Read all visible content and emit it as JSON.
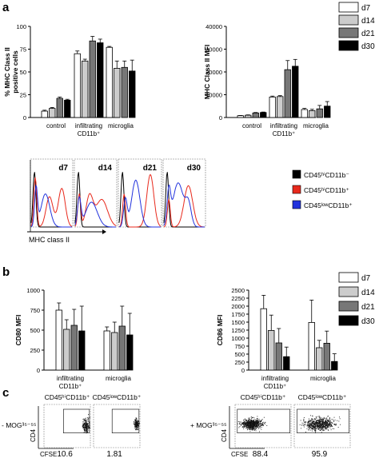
{
  "panel_labels": {
    "a": "a",
    "b": "b",
    "c": "c"
  },
  "legend_days": [
    "d7",
    "d14",
    "d21",
    "d30"
  ],
  "colors": {
    "d7": "#ffffff",
    "d14": "#cccccc",
    "d21": "#777777",
    "d30": "#000000",
    "hi_neg": "#000000",
    "hi_pos": "#e8291c",
    "low_pos": "#2233dd"
  },
  "chart_data": [
    {
      "id": "pct",
      "type": "bar",
      "ylabel_lines": [
        "% MHC Class II",
        "positive cells"
      ],
      "ylim": [
        0,
        100
      ],
      "yticks": [
        "0",
        "25",
        "50",
        "75",
        "100"
      ],
      "groups": [
        {
          "label": "control",
          "values": [
            7,
            10,
            21,
            19
          ],
          "errors": [
            1,
            1,
            1.5,
            1
          ]
        },
        {
          "label": "infiltrating",
          "label2": "CD11b⁺",
          "values": [
            70,
            62,
            84,
            82
          ],
          "errors": [
            3,
            2,
            5,
            4
          ]
        },
        {
          "label": "microglia",
          "values": [
            77,
            54,
            55,
            51
          ],
          "errors": [
            1,
            8,
            7,
            12
          ]
        }
      ]
    },
    {
      "id": "mfi",
      "type": "bar",
      "ylabel_lines": [
        "MHC Class II MFI"
      ],
      "ylim": [
        0,
        40000
      ],
      "yticks": [
        "0",
        "10000",
        "20000",
        "30000",
        "40000"
      ],
      "groups": [
        {
          "label": "control",
          "values": [
            800,
            1000,
            2000,
            2200
          ],
          "errors": [
            100,
            150,
            200,
            200
          ]
        },
        {
          "label": "infiltrating",
          "label2": "CD11b⁺",
          "values": [
            9000,
            9200,
            21000,
            22500
          ],
          "errors": [
            400,
            400,
            4000,
            3000
          ]
        },
        {
          "label": "microglia",
          "values": [
            3500,
            3000,
            3800,
            5000
          ],
          "errors": [
            500,
            600,
            1500,
            2000
          ]
        }
      ]
    },
    {
      "id": "cd80",
      "type": "bar",
      "ylabel_lines": [
        "CD80 MFI"
      ],
      "ylim": [
        0,
        1000
      ],
      "yticks": [
        "0",
        "250",
        "500",
        "750",
        "1000"
      ],
      "groups": [
        {
          "label": "infiltrating",
          "label2": "CD11b⁺",
          "values": [
            750,
            510,
            560,
            490
          ],
          "errors": [
            90,
            120,
            200,
            310
          ]
        },
        {
          "label": "microglia",
          "values": [
            490,
            470,
            550,
            440
          ],
          "errors": [
            50,
            130,
            250,
            270
          ]
        }
      ]
    },
    {
      "id": "cd86",
      "type": "bar",
      "ylabel_lines": [
        "CD86 MFI"
      ],
      "ylim": [
        0,
        2500
      ],
      "yticks": [
        "0",
        "250",
        "500",
        "750",
        "1000",
        "1250",
        "1500",
        "1750",
        "2000",
        "2250",
        "2500"
      ],
      "groups": [
        {
          "label": "infiltrating",
          "label2": "CD11b⁺",
          "values": [
            1920,
            1240,
            850,
            420
          ],
          "errors": [
            420,
            480,
            450,
            300
          ]
        },
        {
          "label": "microglia",
          "values": [
            1490,
            700,
            840,
            270
          ],
          "errors": [
            700,
            230,
            380,
            240
          ]
        }
      ]
    }
  ],
  "histograms": {
    "days": [
      "d7",
      "d14",
      "d21",
      "d30"
    ],
    "xlabel": "MHC class II",
    "legend": [
      "CD45ʰⁱCD11b⁻",
      "CD45ʰⁱCD11b⁺",
      "CD45ˡᵒʷCD11b⁺"
    ]
  },
  "scatter": {
    "col_labels": [
      "CD45ʰⁱCD11b⁺",
      "CD45ˡᵒʷCD11b⁺",
      "CD45ʰⁱCD11b⁺",
      "CD45ˡᵒʷCD11b⁺"
    ],
    "row_labels": [
      "- MOG³⁵⁻⁵⁵",
      "+ MOG³⁵⁻⁵⁵"
    ],
    "values": [
      "10.6",
      "1.81",
      "88.4",
      "95.9"
    ],
    "ylabel": "CD4",
    "xlabel": "CFSE"
  }
}
